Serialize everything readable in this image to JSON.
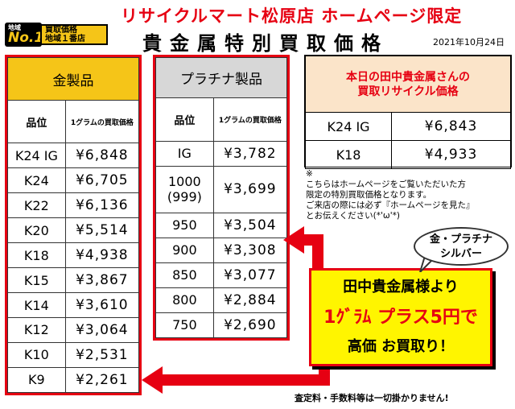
{
  "header": {
    "top_title": "リサイクルマート松原店 ホームページ限定",
    "main_title": "貴金属特別買取価格",
    "date": "2021年10月24日",
    "badge": {
      "small": "地域",
      "big": "No.1",
      "line1": "買取価格",
      "line2": "地域１番店"
    }
  },
  "gold": {
    "title": "金製品",
    "col_grade": "品位",
    "col_unit": "1グラムの買取価格",
    "rows": [
      {
        "grade": "K24 IG",
        "price": "¥6,848"
      },
      {
        "grade": "K24",
        "price": "¥6,705"
      },
      {
        "grade": "K22",
        "price": "¥6,136"
      },
      {
        "grade": "K20",
        "price": "¥5,514"
      },
      {
        "grade": "K18",
        "price": "¥4,938"
      },
      {
        "grade": "K15",
        "price": "¥3,867"
      },
      {
        "grade": "K14",
        "price": "¥3,610"
      },
      {
        "grade": "K12",
        "price": "¥3,064"
      },
      {
        "grade": "K10",
        "price": "¥2,531"
      },
      {
        "grade": "K9",
        "price": "¥2,261"
      }
    ]
  },
  "platinum": {
    "title": "プラチナ製品",
    "col_grade": "品位",
    "col_unit": "1グラムの買取価格",
    "rows": [
      {
        "grade": "IG",
        "grade2": "",
        "price": "¥3,782"
      },
      {
        "grade": "1000",
        "grade2": "(999)",
        "price": "¥3,699"
      },
      {
        "grade": "950",
        "grade2": "",
        "price": "¥3,504"
      },
      {
        "grade": "900",
        "grade2": "",
        "price": "¥3,308"
      },
      {
        "grade": "850",
        "grade2": "",
        "price": "¥3,077"
      },
      {
        "grade": "800",
        "grade2": "",
        "price": "¥2,884"
      },
      {
        "grade": "750",
        "grade2": "",
        "price": "¥2,690"
      }
    ]
  },
  "daily": {
    "title_line1": "本日の田中貴金属さんの",
    "title_line2": "買取リサイクル価格",
    "rows": [
      {
        "grade": "K24 IG",
        "price": "¥6,843"
      },
      {
        "grade": "K18",
        "price": "¥4,933"
      }
    ]
  },
  "note": {
    "mark": "※",
    "line1": "こちらはホームページをご覧いただいた方",
    "line2": "限定の特別買取価格となります。",
    "line3": "ご来店の際には必ず『ホームページを見た』",
    "line4": "とお伝えください(*'ω'*)"
  },
  "bubble": {
    "line1": "金・プラチナ",
    "line2": "シルバー"
  },
  "promo": {
    "line1": "田中貴金属様より",
    "line2": "1ｸﾞﾗﾑ プラス5円で",
    "line3": "高価 お買取り！"
  },
  "footer": "査定料・手数料等は一切掛かりません!",
  "colors": {
    "accent_red": "#e60012",
    "gold_header": "#f5c518",
    "platinum_header": "#d7d7d7",
    "promo_bg": "#fff500"
  }
}
